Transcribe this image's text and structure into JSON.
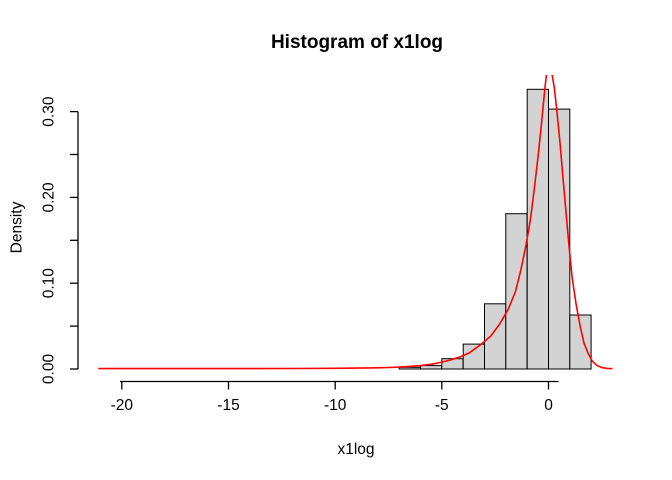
{
  "window": {
    "background": "#FFFFFF"
  },
  "chart_data": {
    "type": "histogram",
    "title": "Histogram of x1log",
    "xlabel": "x1log",
    "ylabel": "Density",
    "bin_breaks": [
      -7,
      -6,
      -5,
      -4,
      -3,
      -2,
      -1,
      0,
      1,
      2
    ],
    "bin_densities": [
      0.002,
      0.004,
      0.012,
      0.029,
      0.076,
      0.181,
      0.326,
      0.303,
      0.063
    ],
    "x_ticks": [
      {
        "v": -20,
        "label": "-20"
      },
      {
        "v": -15,
        "label": "-15"
      },
      {
        "v": -10,
        "label": "-10"
      },
      {
        "v": -5,
        "label": "-5"
      },
      {
        "v": 0,
        "label": "0"
      }
    ],
    "y_ticks": [
      {
        "v": 0.0,
        "label": "0.00"
      },
      {
        "v": 0.05,
        "label": ""
      },
      {
        "v": 0.1,
        "label": "0.10"
      },
      {
        "v": 0.15,
        "label": ""
      },
      {
        "v": 0.2,
        "label": "0.20"
      },
      {
        "v": 0.25,
        "label": ""
      },
      {
        "v": 0.3,
        "label": "0.30"
      }
    ],
    "x_range": [
      -21.96,
      3.96
    ],
    "y_range": [
      -0.0134,
      0.3427
    ],
    "grid": false,
    "legend": null,
    "density_curve": [
      [
        -21.1,
        0.0005
      ],
      [
        -18,
        0.0005
      ],
      [
        -15,
        0.0005
      ],
      [
        -12,
        0.0006
      ],
      [
        -10,
        0.0008
      ],
      [
        -9,
        0.001
      ],
      [
        -8,
        0.0014
      ],
      [
        -7.5,
        0.0018
      ],
      [
        -7,
        0.0022
      ],
      [
        -6.5,
        0.003
      ],
      [
        -6,
        0.004
      ],
      [
        -5.5,
        0.0055
      ],
      [
        -5,
        0.008
      ],
      [
        -4.6,
        0.0105
      ],
      [
        -4.1,
        0.0145
      ],
      [
        -3.7,
        0.019
      ],
      [
        -3.2,
        0.028
      ],
      [
        -2.7,
        0.0385
      ],
      [
        -2.3,
        0.052
      ],
      [
        -1.9,
        0.069
      ],
      [
        -1.55,
        0.09
      ],
      [
        -1.3,
        0.115
      ],
      [
        -1.05,
        0.145
      ],
      [
        -0.85,
        0.174
      ],
      [
        -0.67,
        0.209
      ],
      [
        -0.48,
        0.25
      ],
      [
        -0.34,
        0.284
      ],
      [
        -0.2,
        0.319
      ],
      [
        -0.1,
        0.343
      ],
      [
        -0.03,
        0.355
      ],
      [
        0.03,
        0.359
      ],
      [
        0.1,
        0.353
      ],
      [
        0.17,
        0.343
      ],
      [
        0.27,
        0.328
      ],
      [
        0.41,
        0.296
      ],
      [
        0.55,
        0.261
      ],
      [
        0.69,
        0.22
      ],
      [
        0.83,
        0.18
      ],
      [
        0.97,
        0.141
      ],
      [
        1.11,
        0.106
      ],
      [
        1.3,
        0.075
      ],
      [
        1.49,
        0.049
      ],
      [
        1.67,
        0.03
      ],
      [
        1.86,
        0.018
      ],
      [
        2.05,
        0.009
      ],
      [
        2.28,
        0.004
      ],
      [
        2.52,
        0.0015
      ],
      [
        2.75,
        0.0007
      ],
      [
        3.0,
        0.0005
      ]
    ],
    "colors": {
      "bar_fill": "#D3D3D3",
      "bar_stroke": "#000000",
      "curve": "#FF0000",
      "axis": "#000000",
      "text": "#000000"
    }
  }
}
